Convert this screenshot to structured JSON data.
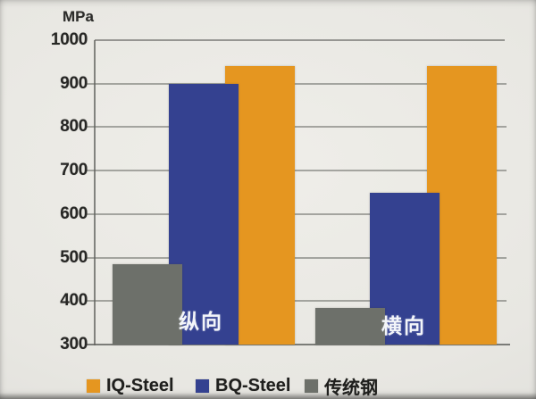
{
  "page": {
    "background": "#e8e7e2"
  },
  "chart_data": {
    "type": "bar",
    "title": "",
    "unit_label": "MPa",
    "xlabel": "",
    "ylabel": "MPa",
    "ylim": [
      300,
      1000
    ],
    "yticks": [
      1000,
      900,
      800,
      700,
      600,
      500,
      400,
      300
    ],
    "grid": true,
    "legend_position": "bottom",
    "categories": [
      "纵向",
      "横向"
    ],
    "series": [
      {
        "key": "iq-steel",
        "name": "IQ-Steel",
        "color": "#e59620",
        "values": [
          940,
          940
        ]
      },
      {
        "key": "bq-steel",
        "name": "BQ-Steel",
        "color": "#344190",
        "values": [
          900,
          650
        ]
      },
      {
        "key": "conventional-steel",
        "name": "传统钢",
        "color": "#6d706a",
        "values": [
          485,
          385
        ]
      }
    ]
  }
}
